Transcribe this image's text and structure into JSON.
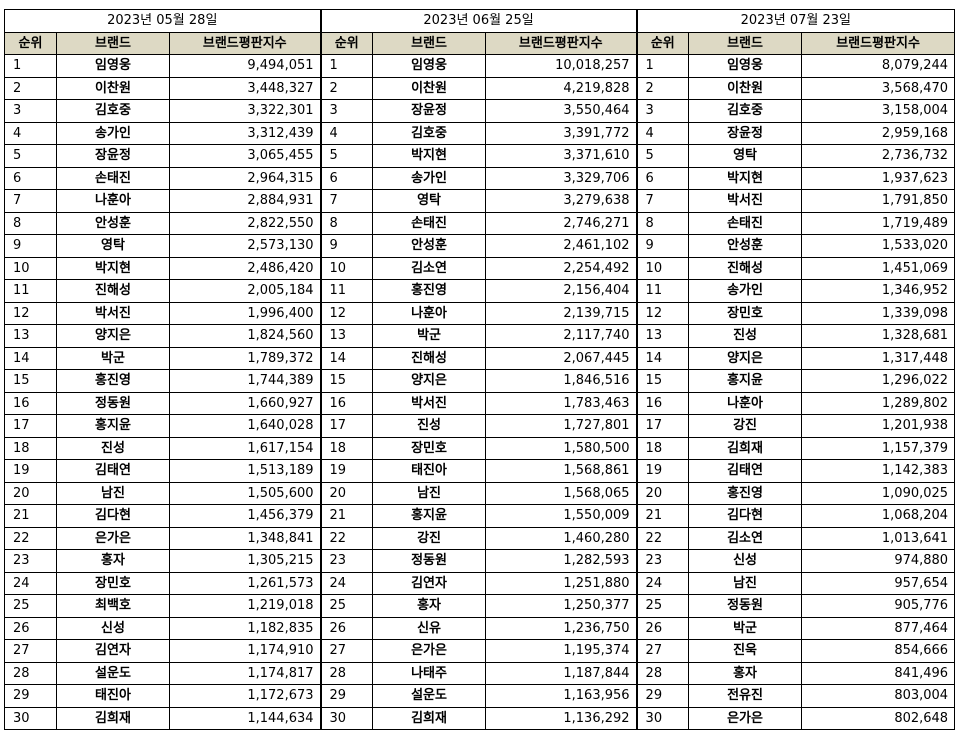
{
  "tables": [
    {
      "date": "2023년 05월 28일",
      "headers": [
        "순위",
        "브랜드",
        "브랜드평판지수"
      ],
      "rows": [
        [
          "1",
          "임영웅",
          "9,494,051"
        ],
        [
          "2",
          "이찬원",
          "3,448,327"
        ],
        [
          "3",
          "김호중",
          "3,322,301"
        ],
        [
          "4",
          "송가인",
          "3,312,439"
        ],
        [
          "5",
          "장윤정",
          "3,065,455"
        ],
        [
          "6",
          "손태진",
          "2,964,315"
        ],
        [
          "7",
          "나훈아",
          "2,884,931"
        ],
        [
          "8",
          "안성훈",
          "2,822,550"
        ],
        [
          "9",
          "영탁",
          "2,573,130"
        ],
        [
          "10",
          "박지현",
          "2,486,420"
        ],
        [
          "11",
          "진해성",
          "2,005,184"
        ],
        [
          "12",
          "박서진",
          "1,996,400"
        ],
        [
          "13",
          "양지은",
          "1,824,560"
        ],
        [
          "14",
          "박군",
          "1,789,372"
        ],
        [
          "15",
          "홍진영",
          "1,744,389"
        ],
        [
          "16",
          "정동원",
          "1,660,927"
        ],
        [
          "17",
          "홍지윤",
          "1,640,028"
        ],
        [
          "18",
          "진성",
          "1,617,154"
        ],
        [
          "19",
          "김태연",
          "1,513,189"
        ],
        [
          "20",
          "남진",
          "1,505,600"
        ],
        [
          "21",
          "김다현",
          "1,456,379"
        ],
        [
          "22",
          "은가은",
          "1,348,841"
        ],
        [
          "23",
          "홍자",
          "1,305,215"
        ],
        [
          "24",
          "장민호",
          "1,261,573"
        ],
        [
          "25",
          "최백호",
          "1,219,018"
        ],
        [
          "26",
          "신성",
          "1,182,835"
        ],
        [
          "27",
          "김연자",
          "1,174,910"
        ],
        [
          "28",
          "설운도",
          "1,174,817"
        ],
        [
          "29",
          "태진아",
          "1,172,673"
        ],
        [
          "30",
          "김희재",
          "1,144,634"
        ]
      ]
    },
    {
      "date": "2023년 06월 25일",
      "headers": [
        "순위",
        "브랜드",
        "브랜드평판지수"
      ],
      "rows": [
        [
          "1",
          "임영웅",
          "10,018,257"
        ],
        [
          "2",
          "이찬원",
          "4,219,828"
        ],
        [
          "3",
          "장윤정",
          "3,550,464"
        ],
        [
          "4",
          "김호중",
          "3,391,772"
        ],
        [
          "5",
          "박지현",
          "3,371,610"
        ],
        [
          "6",
          "송가인",
          "3,329,706"
        ],
        [
          "7",
          "영탁",
          "3,279,638"
        ],
        [
          "8",
          "손태진",
          "2,746,271"
        ],
        [
          "9",
          "안성훈",
          "2,461,102"
        ],
        [
          "10",
          "김소연",
          "2,254,492"
        ],
        [
          "11",
          "홍진영",
          "2,156,404"
        ],
        [
          "12",
          "나훈아",
          "2,139,715"
        ],
        [
          "13",
          "박군",
          "2,117,740"
        ],
        [
          "14",
          "진해성",
          "2,067,445"
        ],
        [
          "15",
          "양지은",
          "1,846,516"
        ],
        [
          "16",
          "박서진",
          "1,783,463"
        ],
        [
          "17",
          "진성",
          "1,727,801"
        ],
        [
          "18",
          "장민호",
          "1,580,500"
        ],
        [
          "19",
          "태진아",
          "1,568,861"
        ],
        [
          "20",
          "남진",
          "1,568,065"
        ],
        [
          "21",
          "홍지윤",
          "1,550,009"
        ],
        [
          "22",
          "강진",
          "1,460,280"
        ],
        [
          "23",
          "정동원",
          "1,282,593"
        ],
        [
          "24",
          "김연자",
          "1,251,880"
        ],
        [
          "25",
          "홍자",
          "1,250,377"
        ],
        [
          "26",
          "신유",
          "1,236,750"
        ],
        [
          "27",
          "은가은",
          "1,195,374"
        ],
        [
          "28",
          "나태주",
          "1,187,844"
        ],
        [
          "29",
          "설운도",
          "1,163,956"
        ],
        [
          "30",
          "김희재",
          "1,136,292"
        ]
      ]
    },
    {
      "date": "2023년 07월 23일",
      "headers": [
        "순위",
        "브랜드",
        "브랜드평판지수"
      ],
      "rows": [
        [
          "1",
          "임영웅",
          "8,079,244"
        ],
        [
          "2",
          "이찬원",
          "3,568,470"
        ],
        [
          "3",
          "김호중",
          "3,158,004"
        ],
        [
          "4",
          "장윤정",
          "2,959,168"
        ],
        [
          "5",
          "영탁",
          "2,736,732"
        ],
        [
          "6",
          "박지현",
          "1,937,623"
        ],
        [
          "7",
          "박서진",
          "1,791,850"
        ],
        [
          "8",
          "손태진",
          "1,719,489"
        ],
        [
          "9",
          "안성훈",
          "1,533,020"
        ],
        [
          "10",
          "진해성",
          "1,451,069"
        ],
        [
          "11",
          "송가인",
          "1,346,952"
        ],
        [
          "12",
          "장민호",
          "1,339,098"
        ],
        [
          "13",
          "진성",
          "1,328,681"
        ],
        [
          "14",
          "양지은",
          "1,317,448"
        ],
        [
          "15",
          "홍지윤",
          "1,296,022"
        ],
        [
          "16",
          "나훈아",
          "1,289,802"
        ],
        [
          "17",
          "강진",
          "1,201,938"
        ],
        [
          "18",
          "김희재",
          "1,157,379"
        ],
        [
          "19",
          "김태연",
          "1,142,383"
        ],
        [
          "20",
          "홍진영",
          "1,090,025"
        ],
        [
          "21",
          "김다현",
          "1,068,204"
        ],
        [
          "22",
          "김소연",
          "1,013,641"
        ],
        [
          "23",
          "신성",
          "974,880"
        ],
        [
          "24",
          "남진",
          "957,654"
        ],
        [
          "25",
          "정동원",
          "905,776"
        ],
        [
          "26",
          "박군",
          "877,464"
        ],
        [
          "27",
          "진욱",
          "854,666"
        ],
        [
          "28",
          "홍자",
          "841,496"
        ],
        [
          "29",
          "전유진",
          "803,004"
        ],
        [
          "30",
          "은가은",
          "802,648"
        ]
      ]
    }
  ]
}
